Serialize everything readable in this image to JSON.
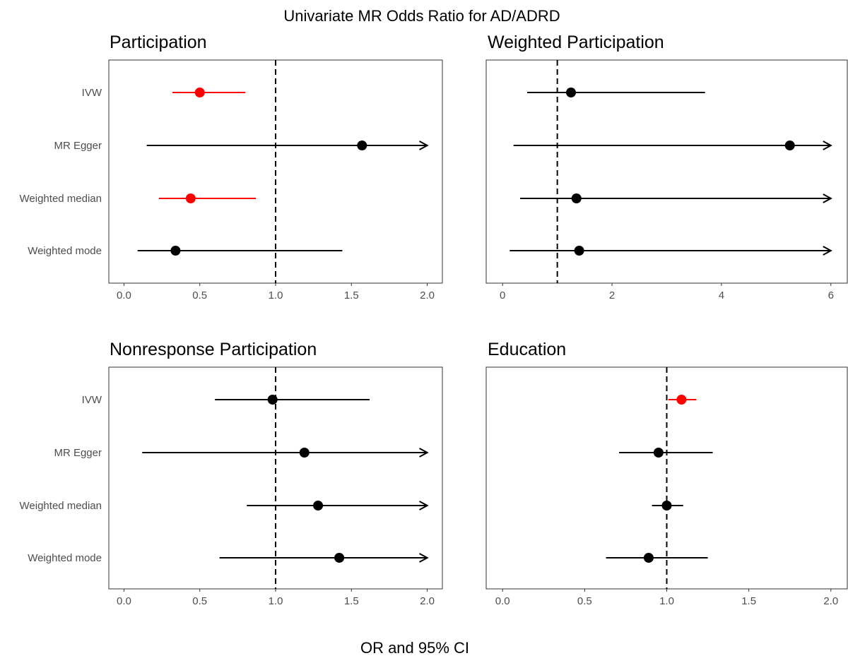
{
  "title": "Univariate MR Odds Ratio for AD/ADRD",
  "xlabel": "OR and 95% CI",
  "colors": {
    "significant": "#ff0000",
    "default": "#000000",
    "axis_text": "#4d4d4d"
  },
  "chart_data": [
    {
      "type": "scatter",
      "subtitle": "Participation",
      "categories": [
        "IVW",
        "MR Egger",
        "Weighted median",
        "Weighted mode"
      ],
      "xlim": [
        -0.1,
        2.1
      ],
      "xticks": [
        0.0,
        0.5,
        1.0,
        1.5,
        2.0
      ],
      "xtick_labels": [
        "0.0",
        "0.5",
        "1.0",
        "1.5",
        "2.0"
      ],
      "reference_line": 1.0,
      "points": [
        {
          "label": "IVW",
          "or": 0.5,
          "lo": 0.32,
          "hi": 0.8,
          "arrow": false,
          "significant": true
        },
        {
          "label": "MR Egger",
          "or": 1.57,
          "lo": 0.15,
          "hi": 2.0,
          "arrow": true,
          "significant": false
        },
        {
          "label": "Weighted median",
          "or": 0.44,
          "lo": 0.23,
          "hi": 0.87,
          "arrow": false,
          "significant": true
        },
        {
          "label": "Weighted mode",
          "or": 0.34,
          "lo": 0.09,
          "hi": 1.44,
          "arrow": false,
          "significant": false
        }
      ],
      "grid": false
    },
    {
      "type": "scatter",
      "subtitle": "Weighted Participation",
      "categories": [
        "IVW",
        "MR Egger",
        "Weighted median",
        "Weighted mode"
      ],
      "xlim": [
        -0.3,
        6.3
      ],
      "xticks": [
        0,
        2,
        4,
        6
      ],
      "xtick_labels": [
        "0",
        "2",
        "4",
        "6"
      ],
      "reference_line": 1.0,
      "points": [
        {
          "label": "IVW",
          "or": 1.25,
          "lo": 0.45,
          "hi": 3.7,
          "arrow": false,
          "significant": false
        },
        {
          "label": "MR Egger",
          "or": 5.25,
          "lo": 0.2,
          "hi": 6.0,
          "arrow": true,
          "significant": false
        },
        {
          "label": "Weighted median",
          "or": 1.35,
          "lo": 0.32,
          "hi": 6.0,
          "arrow": true,
          "significant": false
        },
        {
          "label": "Weighted mode",
          "or": 1.4,
          "lo": 0.13,
          "hi": 6.0,
          "arrow": true,
          "significant": false
        }
      ],
      "grid": false
    },
    {
      "type": "scatter",
      "subtitle": "Nonresponse Participation",
      "categories": [
        "IVW",
        "MR Egger",
        "Weighted median",
        "Weighted mode"
      ],
      "xlim": [
        -0.1,
        2.1
      ],
      "xticks": [
        0.0,
        0.5,
        1.0,
        1.5,
        2.0
      ],
      "xtick_labels": [
        "0.0",
        "0.5",
        "1.0",
        "1.5",
        "2.0"
      ],
      "reference_line": 1.0,
      "points": [
        {
          "label": "IVW",
          "or": 0.98,
          "lo": 0.6,
          "hi": 1.62,
          "arrow": false,
          "significant": false
        },
        {
          "label": "MR Egger",
          "or": 1.19,
          "lo": 0.12,
          "hi": 2.0,
          "arrow": true,
          "significant": false
        },
        {
          "label": "Weighted median",
          "or": 1.28,
          "lo": 0.81,
          "hi": 2.0,
          "arrow": true,
          "significant": false
        },
        {
          "label": "Weighted mode",
          "or": 1.42,
          "lo": 0.63,
          "hi": 2.0,
          "arrow": true,
          "significant": false
        }
      ],
      "grid": false
    },
    {
      "type": "scatter",
      "subtitle": "Education",
      "categories": [
        "IVW",
        "MR Egger",
        "Weighted median",
        "Weighted mode"
      ],
      "xlim": [
        -0.1,
        2.1
      ],
      "xticks": [
        0.0,
        0.5,
        1.0,
        1.5,
        2.0
      ],
      "xtick_labels": [
        "0.0",
        "0.5",
        "1.0",
        "1.5",
        "2.0"
      ],
      "reference_line": 1.0,
      "points": [
        {
          "label": "IVW",
          "or": 1.09,
          "lo": 1.01,
          "hi": 1.18,
          "arrow": false,
          "significant": true
        },
        {
          "label": "MR Egger",
          "or": 0.95,
          "lo": 0.71,
          "hi": 1.28,
          "arrow": false,
          "significant": false
        },
        {
          "label": "Weighted median",
          "or": 1.0,
          "lo": 0.91,
          "hi": 1.1,
          "arrow": false,
          "significant": false
        },
        {
          "label": "Weighted mode",
          "or": 0.89,
          "lo": 0.63,
          "hi": 1.25,
          "arrow": false,
          "significant": false
        }
      ],
      "grid": false
    }
  ]
}
